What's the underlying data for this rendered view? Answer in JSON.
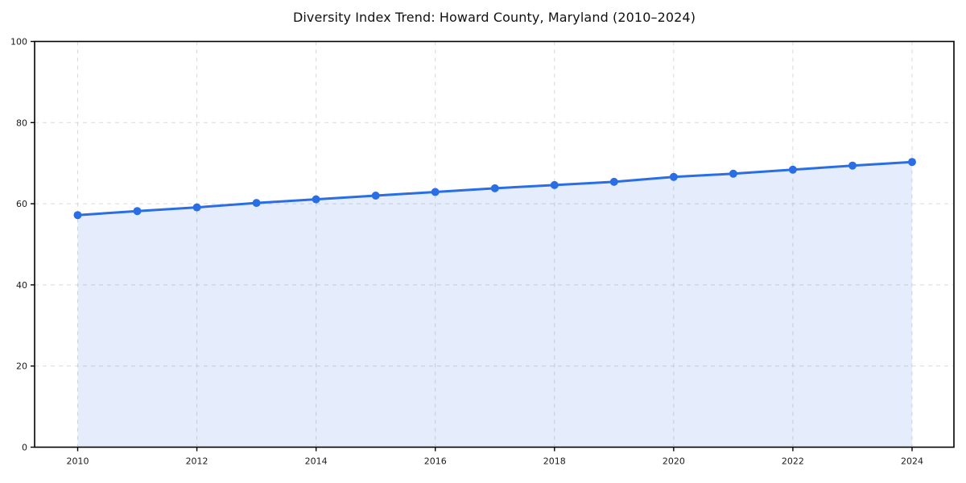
{
  "chart_data": {
    "type": "line",
    "title": "Diversity Index Trend: Howard County, Maryland (2010–2024)",
    "xlabel": "",
    "ylabel": "",
    "x": [
      2010,
      2011,
      2012,
      2013,
      2014,
      2015,
      2016,
      2017,
      2018,
      2019,
      2020,
      2021,
      2022,
      2023,
      2024
    ],
    "series": [
      {
        "name": "Diversity Index",
        "values": [
          57.2,
          58.2,
          59.1,
          60.2,
          61.1,
          62.0,
          62.9,
          63.8,
          64.6,
          65.4,
          66.6,
          67.4,
          68.4,
          69.4,
          70.3
        ]
      }
    ],
    "ylim": [
      0,
      100
    ],
    "yticks": [
      0,
      20,
      40,
      60,
      80,
      100
    ],
    "xticks": [
      2010,
      2012,
      2014,
      2016,
      2018,
      2020,
      2022,
      2024
    ],
    "grid": true,
    "grid_style": "dashed",
    "legend_position": "none",
    "marker": "circle",
    "area_fill": true,
    "colors": {
      "line": "#2a6ee5",
      "marker": "#2a6ee5",
      "fill": "#2a6ee5",
      "fill_opacity": 0.12,
      "grid": "#d9d9d9",
      "axis": "#000000",
      "tick_text": "#1a1a1a",
      "title_text": "#111111",
      "background": "#ffffff"
    }
  }
}
